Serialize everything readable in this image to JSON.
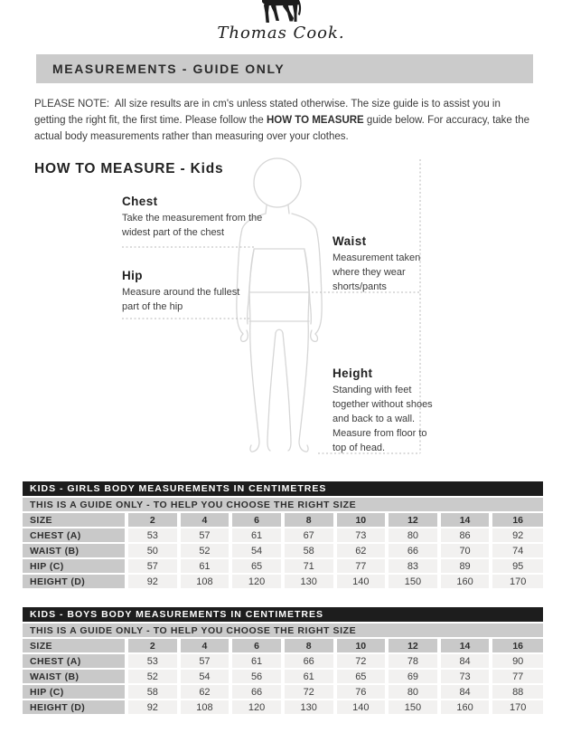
{
  "brand": {
    "script_logo": "Thomas Cook.",
    "logo_icon": "horse-silhouette"
  },
  "header": {
    "title": "MEASUREMENTS - GUIDE ONLY"
  },
  "note": {
    "before": "PLEASE NOTE:  All size results are in cm's unless stated otherwise. The size guide is to assist you in getting the right fit, the first time. Please follow the ",
    "bold": "HOW TO MEASURE",
    "after": " guide below. For accuracy, take the actual body measurements rather than measuring over your clothes."
  },
  "how_to_measure": {
    "title": "HOW TO MEASURE - Kids",
    "labels": [
      {
        "name": "Chest",
        "description": "Take the measurement from the widest part of the chest"
      },
      {
        "name": "Hip",
        "description": "Measure around the fullest part of the hip"
      },
      {
        "name": "Waist",
        "description": "Measurement taken where they wear shorts/pants"
      },
      {
        "name": "Height",
        "description": "Standing with feet together without shoes and back to a wall. Measure from floor to top of head."
      }
    ]
  },
  "tables": [
    {
      "title": "KIDS - GIRLS BODY MEASUREMENTS IN CENTIMETRES",
      "subtitle": "THIS IS A GUIDE ONLY - TO HELP YOU CHOOSE THE RIGHT SIZE",
      "size_label": "SIZE",
      "sizes": [
        "2",
        "4",
        "6",
        "8",
        "10",
        "12",
        "14",
        "16"
      ],
      "rows": [
        {
          "label": "CHEST (A)",
          "values": [
            "53",
            "57",
            "61",
            "67",
            "73",
            "80",
            "86",
            "92"
          ]
        },
        {
          "label": "WAIST (B)",
          "values": [
            "50",
            "52",
            "54",
            "58",
            "62",
            "66",
            "70",
            "74"
          ]
        },
        {
          "label": "HIP (C)",
          "values": [
            "57",
            "61",
            "65",
            "71",
            "77",
            "83",
            "89",
            "95"
          ]
        },
        {
          "label": "HEIGHT (D)",
          "values": [
            "92",
            "108",
            "120",
            "130",
            "140",
            "150",
            "160",
            "170"
          ]
        }
      ]
    },
    {
      "title": "KIDS - BOYS BODY MEASUREMENTS IN CENTIMETRES",
      "subtitle": "THIS IS A GUIDE ONLY - TO HELP YOU CHOOSE THE RIGHT SIZE",
      "size_label": "SIZE",
      "sizes": [
        "2",
        "4",
        "6",
        "8",
        "10",
        "12",
        "14",
        "16"
      ],
      "rows": [
        {
          "label": "CHEST (A)",
          "values": [
            "53",
            "57",
            "61",
            "66",
            "72",
            "78",
            "84",
            "90"
          ]
        },
        {
          "label": "WAIST (B)",
          "values": [
            "52",
            "54",
            "56",
            "61",
            "65",
            "69",
            "73",
            "77"
          ]
        },
        {
          "label": "HIP (C)",
          "values": [
            "58",
            "62",
            "66",
            "72",
            "76",
            "80",
            "84",
            "88"
          ]
        },
        {
          "label": "HEIGHT (D)",
          "values": [
            "92",
            "108",
            "120",
            "130",
            "140",
            "150",
            "160",
            "170"
          ]
        }
      ]
    }
  ],
  "colors": {
    "table_title_bg": "#1d1d1d",
    "table_header_bg": "#cbcbcb",
    "table_cell_bg": "#f2f1f0",
    "figure_outline": "#d6d6d6",
    "dotted_line": "#b9b9b9"
  }
}
